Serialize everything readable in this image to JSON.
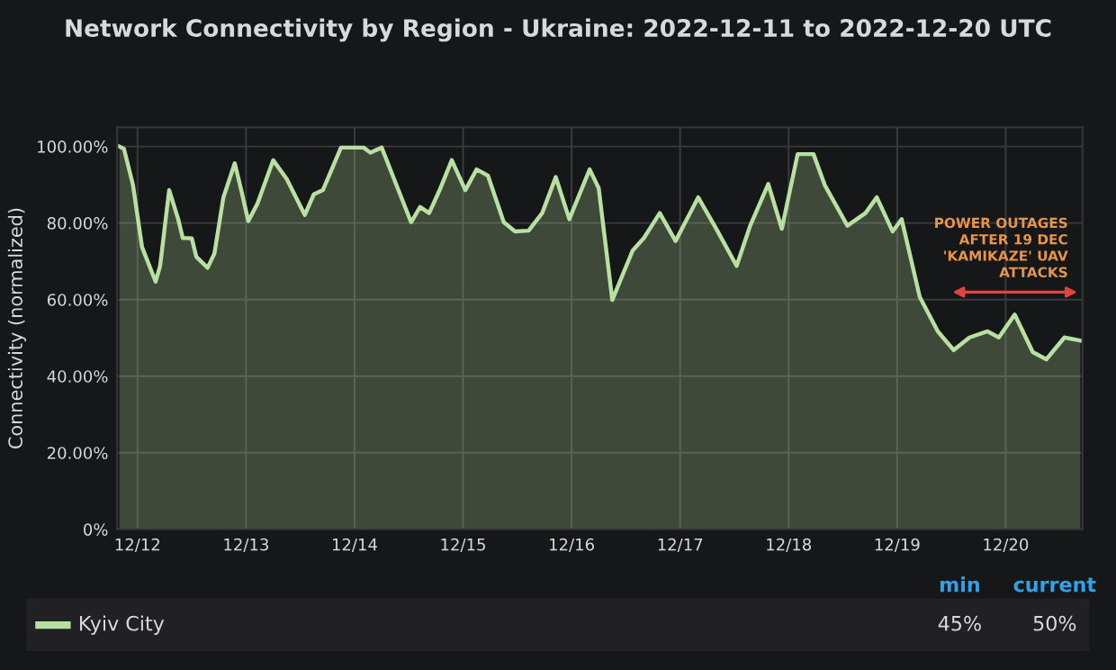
{
  "chart_data": {
    "type": "area",
    "title": "Network Connectivity by Region - Ukraine: 2022-12-11 to 2022-12-20 UTC",
    "ylabel": "Connectivity (normalized)",
    "x": [
      "2022-12-11T20:00",
      "2022-12-11T21:00",
      "2022-12-11T23:00",
      "2022-12-12T01:00",
      "2022-12-12T04:00",
      "2022-12-12T05:00",
      "2022-12-12T07:00",
      "2022-12-12T09:00",
      "2022-12-12T10:00",
      "2022-12-12T12:00",
      "2022-12-12T13:00",
      "2022-12-12T15:30",
      "2022-12-12T17:00",
      "2022-12-12T19:00",
      "2022-12-12T21:30",
      "2022-12-12T23:00",
      "2022-12-13T00:30",
      "2022-12-13T02:30",
      "2022-12-13T06:00",
      "2022-12-13T09:00",
      "2022-12-13T13:00",
      "2022-12-13T15:00",
      "2022-12-13T17:00",
      "2022-12-13T21:00",
      "2022-12-14T02:00",
      "2022-12-14T03:30",
      "2022-12-14T06:00",
      "2022-12-14T12:30",
      "2022-12-14T14:30",
      "2022-12-14T16:30",
      "2022-12-14T19:00",
      "2022-12-14T21:30",
      "2022-12-15T00:30",
      "2022-12-15T03:00",
      "2022-12-15T05:30",
      "2022-12-15T09:00",
      "2022-12-15T11:30",
      "2022-12-15T14:30",
      "2022-12-15T17:30",
      "2022-12-15T20:30",
      "2022-12-15T23:30",
      "2022-12-16T04:00",
      "2022-12-16T06:00",
      "2022-12-16T09:00",
      "2022-12-16T13:30",
      "2022-12-16T16:00",
      "2022-12-16T19:30",
      "2022-12-16T23:00",
      "2022-12-17T04:00",
      "2022-12-17T08:00",
      "2022-12-17T12:30",
      "2022-12-17T15:30",
      "2022-12-17T19:30",
      "2022-12-17T22:30",
      "2022-12-18T02:00",
      "2022-12-18T05:30",
      "2022-12-18T08:00",
      "2022-12-18T13:00",
      "2022-12-18T17:00",
      "2022-12-18T19:30",
      "2022-12-18T23:00",
      "2022-12-19T01:00",
      "2022-12-19T05:00",
      "2022-12-19T09:00",
      "2022-12-19T12:30",
      "2022-12-19T16:00",
      "2022-12-19T20:00",
      "2022-12-19T22:30",
      "2022-12-20T02:00",
      "2022-12-20T06:00",
      "2022-12-20T09:00",
      "2022-12-20T13:00",
      "2022-12-20T16:30"
    ],
    "series": [
      {
        "name": "Kyiv City",
        "color": "#b8e0a0",
        "values": [
          100,
          99.4,
          89.9,
          73.7,
          64.7,
          68.8,
          88.6,
          81,
          76.1,
          76,
          71.2,
          68.3,
          72,
          86.7,
          95.6,
          88.3,
          80.5,
          85,
          96.4,
          91.5,
          82.1,
          87.5,
          88.6,
          99.7,
          99.7,
          98.4,
          99.7,
          80.2,
          84.2,
          82.6,
          89.1,
          96.4,
          88.6,
          94,
          92.4,
          80.2,
          77.8,
          78,
          82.6,
          92,
          81,
          94,
          89.1,
          59.9,
          72.8,
          76.1,
          82.6,
          75.3,
          86.7,
          78.5,
          68.8,
          79.3,
          90.2,
          78.5,
          98,
          98,
          89.9,
          79.3,
          82.6,
          86.7,
          77.8,
          81,
          60.7,
          51.7,
          46.8,
          50.1,
          51.7,
          50.1,
          56.1,
          46.3,
          44.4,
          50.1,
          49.3
        ]
      }
    ],
    "xlim": [
      "2022-12-11T19:30",
      "2022-12-20T17:00"
    ],
    "xticks": [
      {
        "value": "2022-12-12",
        "label": "12/12"
      },
      {
        "value": "2022-12-13",
        "label": "12/13"
      },
      {
        "value": "2022-12-14",
        "label": "12/14"
      },
      {
        "value": "2022-12-15",
        "label": "12/15"
      },
      {
        "value": "2022-12-16",
        "label": "12/16"
      },
      {
        "value": "2022-12-17",
        "label": "12/17"
      },
      {
        "value": "2022-12-18",
        "label": "12/18"
      },
      {
        "value": "2022-12-19",
        "label": "12/19"
      },
      {
        "value": "2022-12-20",
        "label": "12/20"
      }
    ],
    "ylim": [
      0,
      105
    ],
    "yticks": [
      {
        "value": 0,
        "label": "0%"
      },
      {
        "value": 20,
        "label": "20.00%"
      },
      {
        "value": 40,
        "label": "40.00%"
      },
      {
        "value": 60,
        "label": "60.00%"
      },
      {
        "value": 80,
        "label": "80.00%"
      },
      {
        "value": 100,
        "label": "100.00%"
      }
    ],
    "grid": true,
    "legend": "bottom",
    "marker": "none",
    "line_style": "solid",
    "annotations": [
      "POWER OUTAGES\nAFTER 19 DEC\n'KAMIKAZE' UAV\nATTACKS",
      "min",
      "current",
      "45%",
      "50%"
    ]
  }
}
